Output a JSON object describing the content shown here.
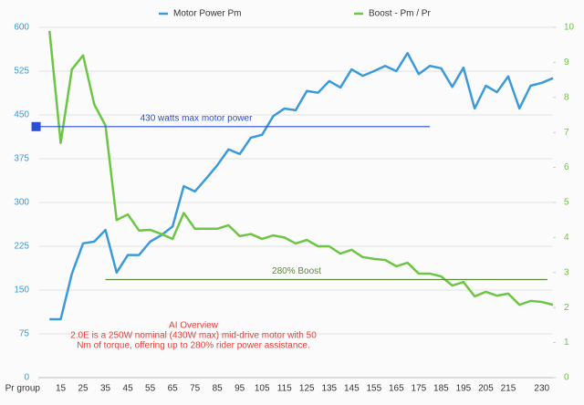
{
  "chart_data": {
    "type": "line",
    "categories": [
      "Pr group",
      null,
      "15",
      null,
      "25",
      null,
      "35",
      null,
      "45",
      null,
      "55",
      null,
      "65",
      null,
      "75",
      null,
      "85",
      null,
      "95",
      null,
      "105",
      null,
      "115",
      null,
      "125",
      null,
      "135",
      null,
      "145",
      null,
      "155",
      null,
      "165",
      null,
      "175",
      null,
      "185",
      null,
      "195",
      null,
      "205",
      null,
      "215",
      null,
      null,
      "230",
      null
    ],
    "series": [
      {
        "name": "Motor Power Pm",
        "color": "#3b9ad9",
        "axis": "y",
        "values": [
          null,
          100,
          100,
          178,
          230,
          233,
          253,
          180,
          210,
          210,
          233,
          244,
          259,
          328,
          319,
          341,
          364,
          391,
          383,
          411,
          416,
          448,
          461,
          458,
          491,
          488,
          508,
          497,
          528,
          517,
          525,
          534,
          525,
          556,
          520,
          534,
          530,
          498,
          531,
          461,
          500,
          489,
          516,
          461,
          500,
          505,
          513
        ]
      },
      {
        "name": "Boost - Pm / Pr",
        "color": "#6cc644",
        "axis": "y2",
        "values": [
          null,
          9.9,
          6.7,
          8.8,
          9.2,
          7.8,
          7.2,
          4.5,
          4.66,
          4.2,
          4.22,
          4.1,
          3.96,
          4.7,
          4.25,
          4.25,
          4.25,
          4.35,
          4.04,
          4.1,
          3.96,
          4.06,
          4.0,
          3.83,
          3.93,
          3.75,
          3.75,
          3.54,
          3.65,
          3.44,
          3.39,
          3.36,
          3.18,
          3.28,
          2.97,
          2.97,
          2.89,
          2.63,
          2.73,
          2.32,
          2.45,
          2.34,
          2.4,
          2.08,
          2.19,
          2.16,
          2.08
        ]
      }
    ],
    "ylim": [
      0,
      600
    ],
    "yticks": [
      0,
      75,
      150,
      225,
      300,
      375,
      450,
      525,
      600
    ],
    "y2lim": [
      0,
      10
    ],
    "y2ticks": [
      0,
      1,
      2,
      3,
      4,
      5,
      6,
      7,
      8,
      9,
      10
    ],
    "grid": true,
    "legend": "top",
    "reference_lines": [
      {
        "label": "430 watts max motor power",
        "value": 430,
        "axis": "y",
        "color": "#2a4fd6"
      },
      {
        "label": "280% Boost",
        "value": 2.8,
        "axis": "y2",
        "color": "#5a8a3a"
      }
    ],
    "annotation": {
      "color": "#e0413a",
      "lines": [
        "AI Overview",
        "2.0E is a 250W nominal (430W max) mid-drive motor with 50",
        "Nm of torque, offering up to 280% rider power assistance."
      ]
    }
  }
}
